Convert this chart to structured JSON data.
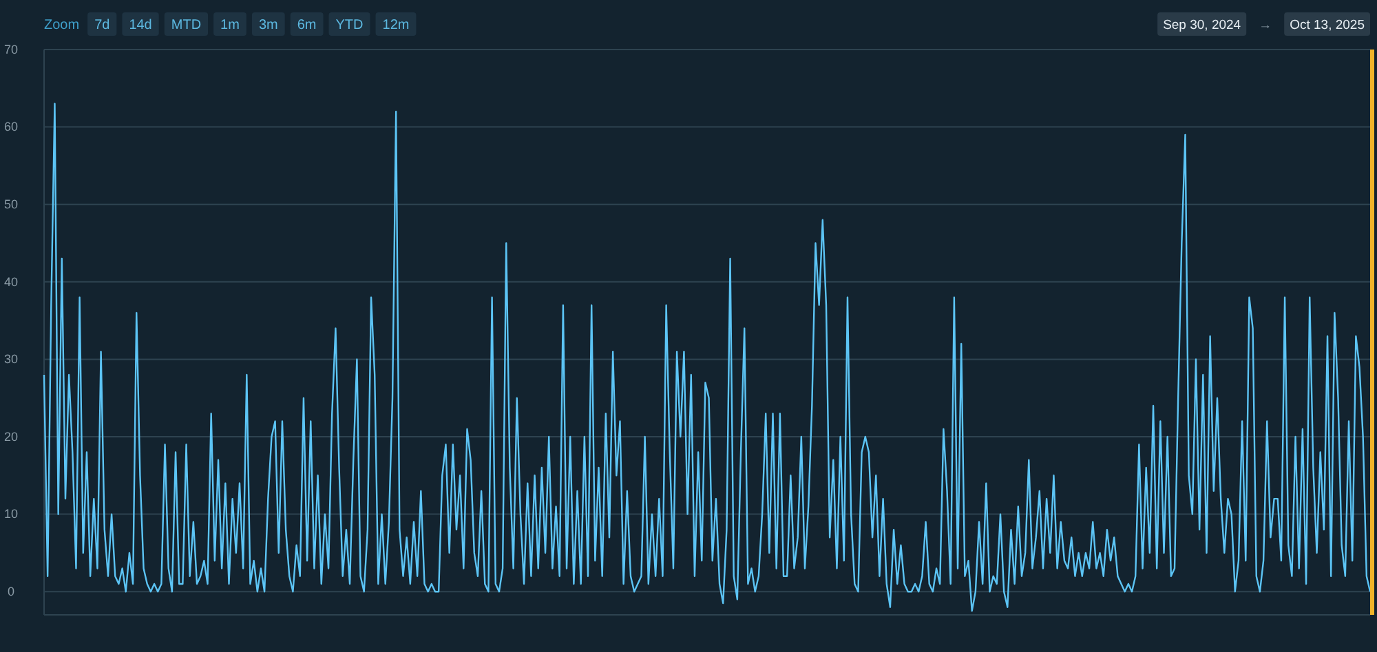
{
  "chart_data": {
    "type": "line",
    "color": "#5cc4f5",
    "annotations": [
      "Zoom",
      "7d",
      "14d",
      "MTD",
      "1m",
      "3m",
      "6m",
      "YTD",
      "12m",
      "Sep 30, 2024",
      "→",
      "Oct 13, 2025"
    ],
    "ylim": [
      -3,
      70
    ],
    "yticks": [
      0,
      10,
      20,
      30,
      40,
      50,
      60,
      70
    ],
    "grid": "y",
    "marker": "none",
    "line_style": "solid",
    "categories": [
      null,
      null,
      null,
      null,
      null,
      null,
      null,
      null,
      null,
      null,
      null,
      null,
      null,
      null,
      null,
      null,
      null,
      null,
      null,
      null,
      null,
      null,
      null,
      null,
      null,
      null,
      null,
      null,
      null,
      null,
      null,
      null,
      null,
      null,
      null,
      null,
      null,
      null,
      null,
      null,
      null,
      null,
      null,
      null,
      null,
      null,
      null,
      null,
      null,
      null,
      null,
      null,
      null,
      null,
      null,
      null,
      null,
      null,
      null,
      null,
      null,
      null,
      null,
      null,
      null,
      null,
      null,
      null,
      null,
      null,
      null,
      null,
      null,
      null,
      null,
      null,
      null,
      null,
      null,
      null,
      null,
      null,
      null,
      null,
      null,
      null,
      null,
      null,
      null,
      null,
      null,
      null,
      null,
      null,
      null,
      null,
      null,
      null,
      null,
      null,
      null,
      null,
      null,
      null,
      null,
      null,
      null,
      null,
      null,
      null,
      null,
      null,
      null,
      null,
      null,
      null,
      null,
      null,
      null,
      null,
      null,
      null,
      null,
      null,
      null,
      null,
      null,
      null,
      null,
      null,
      null,
      null,
      null,
      null,
      null,
      null,
      null,
      null,
      null,
      null,
      null,
      null,
      null,
      null,
      null,
      null,
      null,
      null,
      null,
      null,
      null,
      null,
      null,
      null,
      null,
      null,
      null,
      null,
      null,
      null,
      null,
      null,
      null,
      null,
      null,
      null,
      null,
      null,
      null,
      null,
      null,
      null,
      null,
      null,
      null,
      null,
      null,
      null,
      null,
      null,
      null,
      null,
      null,
      null,
      null,
      null,
      null,
      null,
      null,
      null,
      null,
      null,
      null,
      null,
      null,
      null,
      null,
      null,
      null,
      null,
      null,
      null,
      null,
      null,
      null,
      null,
      null,
      null,
      null,
      null,
      null,
      null,
      null,
      null,
      null,
      null,
      null,
      null,
      null,
      null,
      null,
      null,
      null,
      null,
      null,
      null,
      null,
      null,
      null,
      null,
      null,
      null,
      null,
      null,
      null,
      null,
      null,
      null,
      null,
      null,
      null,
      null,
      null,
      null,
      null,
      null,
      null,
      null,
      null,
      null,
      null,
      null,
      null,
      null,
      null,
      null,
      null,
      null,
      null,
      null,
      null,
      null,
      null,
      null,
      null,
      null,
      null,
      null,
      null,
      null,
      null,
      null,
      null,
      null,
      null,
      null,
      null,
      null,
      null,
      null,
      null,
      null,
      null,
      null,
      null,
      null,
      null,
      null,
      null,
      null,
      null,
      null,
      null,
      null,
      null,
      null,
      null,
      null,
      null,
      null,
      null,
      null,
      null,
      null,
      null,
      null,
      null,
      null,
      null,
      null,
      null,
      null,
      null,
      null,
      null,
      null,
      null,
      null,
      null,
      null,
      null,
      null,
      null,
      null,
      null,
      null,
      null,
      null,
      null,
      null,
      null,
      null,
      null,
      null,
      null,
      null,
      null,
      null,
      null,
      null,
      null,
      null,
      null,
      null,
      null,
      null,
      null,
      null,
      null,
      null,
      null,
      null,
      null,
      null,
      null,
      null,
      null,
      null,
      null,
      null,
      null,
      null,
      null,
      null,
      null,
      null,
      null,
      null,
      null,
      null,
      null,
      null,
      null,
      null
    ],
    "values": [
      28,
      2,
      37,
      63,
      10,
      43,
      12,
      28,
      18,
      3,
      38,
      5,
      18,
      2,
      12,
      3,
      31,
      8,
      2,
      10,
      2,
      1,
      3,
      0,
      5,
      1,
      36,
      15,
      3,
      1,
      0,
      1,
      0,
      1,
      19,
      3,
      0,
      18,
      1,
      1,
      19,
      2,
      9,
      1,
      2,
      4,
      1,
      23,
      4,
      17,
      3,
      14,
      1,
      12,
      5,
      14,
      3,
      28,
      1,
      4,
      0,
      3,
      0,
      12,
      20,
      22,
      5,
      22,
      8,
      2,
      0,
      6,
      2,
      25,
      4,
      22,
      3,
      15,
      1,
      10,
      3,
      23,
      34,
      16,
      2,
      8,
      1,
      17,
      30,
      2,
      0,
      8,
      38,
      28,
      1,
      10,
      1,
      9,
      25,
      62,
      8,
      2,
      7,
      1,
      9,
      2,
      13,
      1,
      0,
      1,
      0,
      0,
      15,
      19,
      5,
      19,
      8,
      15,
      3,
      21,
      17,
      5,
      2,
      13,
      1,
      0,
      38,
      1,
      0,
      3,
      45,
      16,
      3,
      25,
      10,
      1,
      14,
      2,
      15,
      3,
      16,
      5,
      20,
      3,
      11,
      2,
      37,
      3,
      20,
      1,
      13,
      1,
      20,
      2,
      37,
      4,
      16,
      2,
      23,
      7,
      31,
      15,
      22,
      1,
      13,
      2,
      0,
      1,
      2,
      20,
      1,
      10,
      2,
      12,
      2,
      37,
      18,
      3,
      31,
      20,
      31,
      10,
      28,
      2,
      18,
      4,
      27,
      25,
      4,
      12,
      1,
      -1.5,
      8,
      43,
      2,
      -1,
      18,
      34,
      1,
      3,
      0,
      2,
      10,
      23,
      5,
      23,
      3,
      23,
      2,
      2,
      15,
      3,
      7,
      20,
      3,
      11,
      24,
      45,
      37,
      48,
      37,
      7,
      17,
      3,
      20,
      4,
      38,
      10,
      1,
      0,
      18,
      20,
      18,
      7,
      15,
      2,
      12,
      1,
      -2,
      8,
      1,
      6,
      1,
      0,
      0,
      1,
      0,
      2,
      9,
      1,
      0,
      3,
      1,
      21,
      13,
      1,
      38,
      3,
      32,
      2,
      4,
      -2.5,
      0,
      9,
      1,
      14,
      0,
      2,
      1,
      10,
      0,
      -2,
      8,
      1,
      11,
      2,
      5,
      17,
      3,
      7,
      13,
      3,
      12,
      5,
      15,
      3,
      9,
      4,
      3,
      7,
      2,
      5,
      2,
      5,
      3,
      9,
      3,
      5,
      2,
      8,
      4,
      7,
      2,
      1,
      0,
      1,
      0,
      2,
      19,
      3,
      16,
      5,
      24,
      3,
      22,
      5,
      20,
      2,
      3,
      25,
      45,
      59,
      15,
      10,
      30,
      8,
      28,
      5,
      33,
      13,
      25,
      12,
      5,
      12,
      10,
      0,
      4,
      22,
      4,
      38,
      34,
      2,
      0,
      4,
      22,
      7,
      12,
      12,
      4,
      38,
      6,
      2,
      20,
      3,
      21,
      1,
      38,
      16,
      5,
      18,
      8,
      33,
      2,
      36,
      25,
      6,
      2,
      22,
      4,
      33,
      29,
      20,
      2,
      0
    ]
  }
}
